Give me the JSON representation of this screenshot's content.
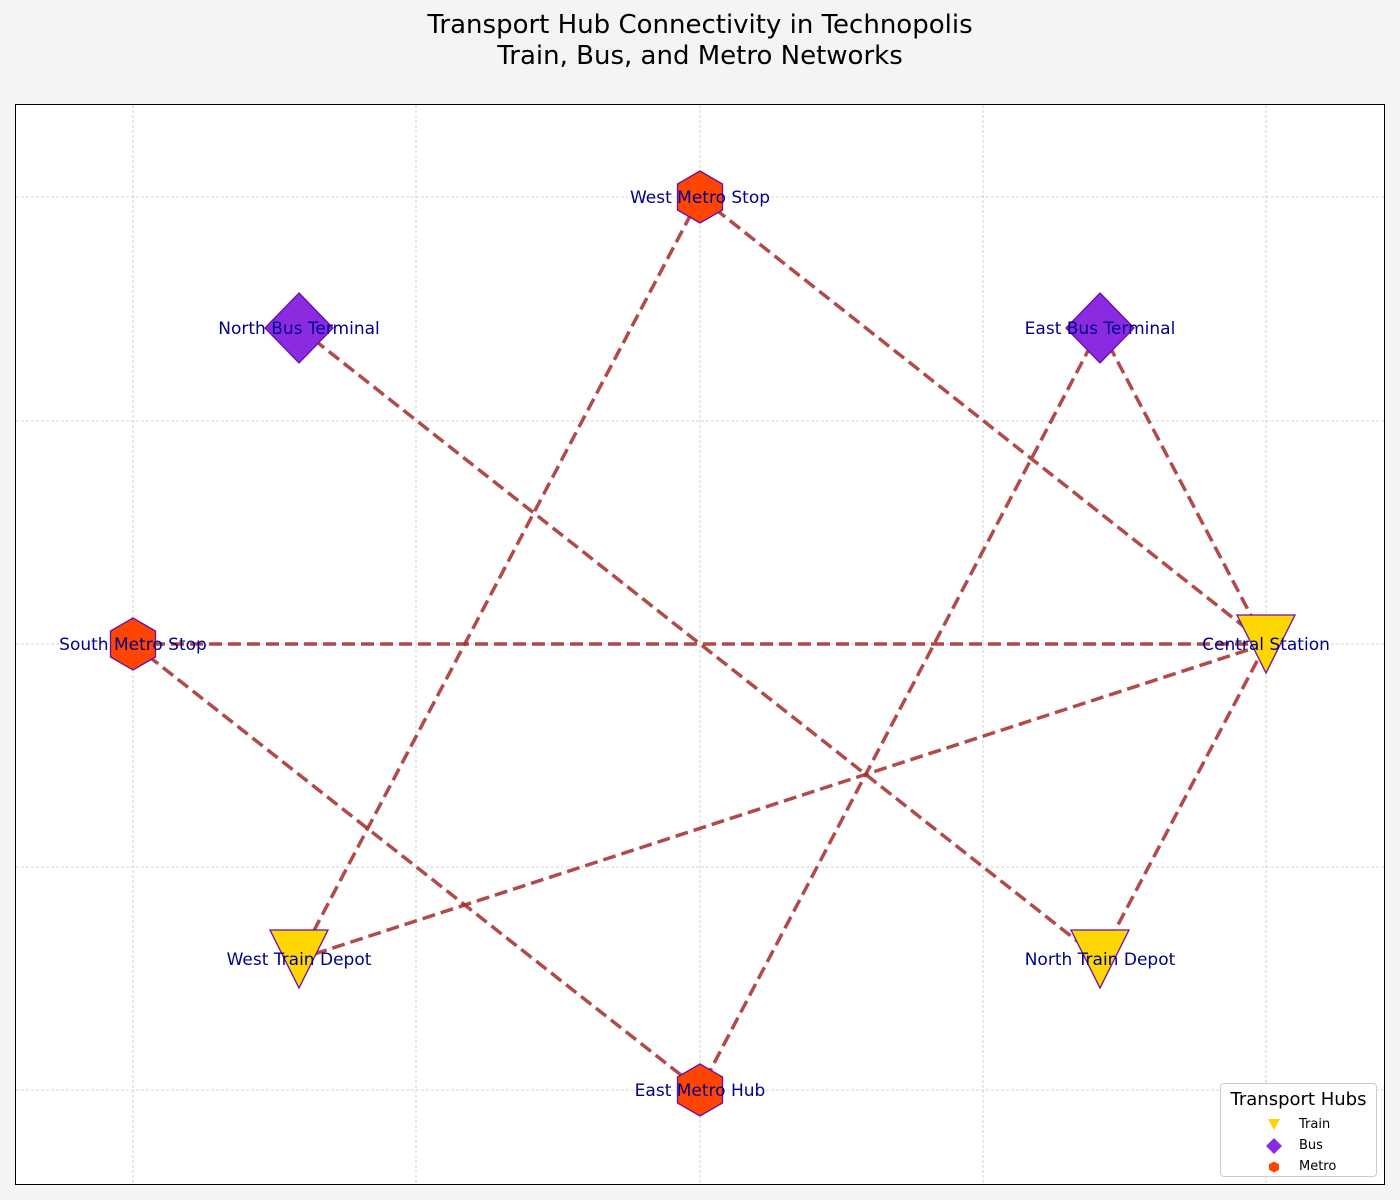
{
  "title_lines": [
    "Transport Hub Connectivity in Technopolis",
    "Train, Bus, and Metro Networks"
  ],
  "hub_types": {
    "Train": {
      "color": "#ffd700",
      "shape": "triangle-down"
    },
    "Bus": {
      "color": "#8a2be2",
      "shape": "diamond"
    },
    "Metro": {
      "color": "#ff4500",
      "shape": "hexagon"
    }
  },
  "marker_edge_color": "#6a0dad",
  "label_color": "#00008b",
  "edge_color": "#a52a2a",
  "edge_style": "dashed",
  "chart_data": {
    "type": "network",
    "grid": true,
    "nodes": [
      {
        "id": "West Metro Stop",
        "type": "Metro"
      },
      {
        "id": "North Bus Terminal",
        "type": "Bus"
      },
      {
        "id": "East Bus Terminal",
        "type": "Bus"
      },
      {
        "id": "South Metro Stop",
        "type": "Metro"
      },
      {
        "id": "Central Station",
        "type": "Train"
      },
      {
        "id": "West Train Depot",
        "type": "Train"
      },
      {
        "id": "North Train Depot",
        "type": "Train"
      },
      {
        "id": "East Metro Hub",
        "type": "Metro"
      }
    ],
    "edges": [
      [
        "West Metro Stop",
        "West Train Depot"
      ],
      [
        "West Metro Stop",
        "Central Station"
      ],
      [
        "North Bus Terminal",
        "North Train Depot"
      ],
      [
        "East Bus Terminal",
        "Central Station"
      ],
      [
        "East Bus Terminal",
        "East Metro Hub"
      ],
      [
        "South Metro Stop",
        "Central Station"
      ],
      [
        "South Metro Stop",
        "East Metro Hub"
      ],
      [
        "Central Station",
        "West Train Depot"
      ],
      [
        "Central Station",
        "North Train Depot"
      ]
    ]
  },
  "legend": {
    "title": "Transport Hubs",
    "items": [
      {
        "label": "Train",
        "type": "Train"
      },
      {
        "label": "Bus",
        "type": "Bus"
      },
      {
        "label": "Metro",
        "type": "Metro"
      }
    ]
  }
}
